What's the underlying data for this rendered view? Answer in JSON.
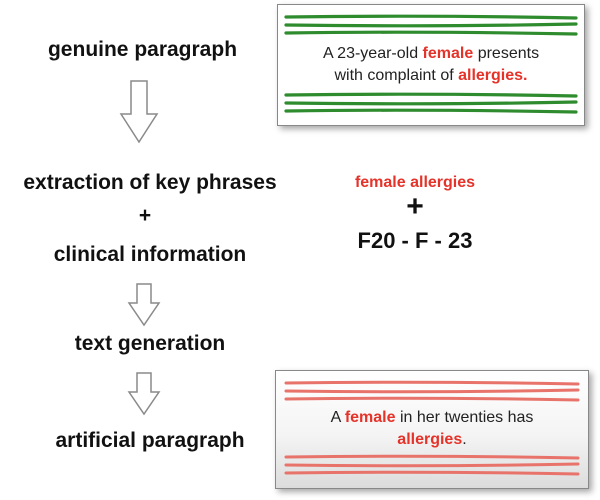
{
  "steps": {
    "genuine": "genuine paragraph",
    "extraction": "extraction of key phrases",
    "plus": "+",
    "clinical": "clinical information",
    "generation": "text generation",
    "artificial": "artificial paragraph"
  },
  "genuine_card": {
    "line1_a": "A 23-year-old ",
    "line1_hl": "female",
    "line1_b": " presents",
    "line2_a": "with complaint of ",
    "line2_hl": "allergies."
  },
  "middle": {
    "phrases": "female allergies",
    "plus": "+",
    "code": "F20 - F - 23"
  },
  "artificial_card": {
    "line1_a": "A ",
    "line1_hl": "female",
    "line1_b": " in her twenties has",
    "line2_hl": "allergies",
    "line2_b": "."
  },
  "colors": {
    "highlight": "#e5332a",
    "genuine_stripe": "#2e8b2e",
    "artificial_stripe": "#e8736a"
  }
}
